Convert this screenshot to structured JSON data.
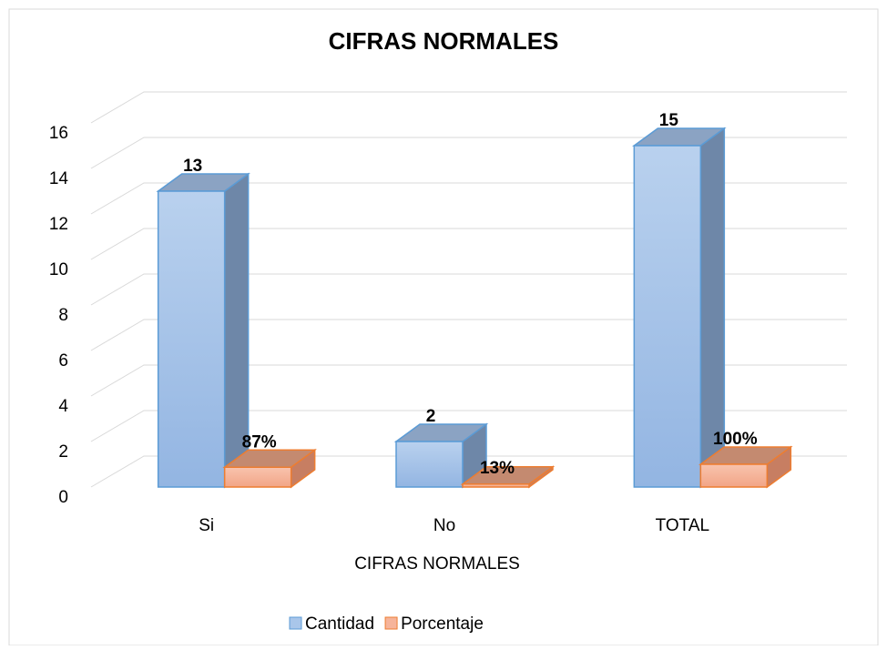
{
  "chart_data": {
    "type": "bar3d",
    "title": "CIFRAS NORMALES",
    "x_label": "CIFRAS NORMALES",
    "categories": [
      "Si",
      "No",
      "TOTAL"
    ],
    "series": [
      {
        "name": "Cantidad",
        "color": "#a9c6ea",
        "values": [
          13,
          2,
          15
        ],
        "value_labels": [
          "13",
          "2",
          "15"
        ]
      },
      {
        "name": "Porcentaje",
        "color": "#f6b49a",
        "values": [
          0.87,
          0.13,
          1
        ],
        "value_labels": [
          "87%",
          "13%",
          "100%"
        ]
      }
    ],
    "ylim": [
      0,
      16
    ],
    "yticks": [
      0,
      2,
      4,
      6,
      8,
      10,
      12,
      14,
      16
    ],
    "grid": true,
    "legend": "bottom"
  }
}
